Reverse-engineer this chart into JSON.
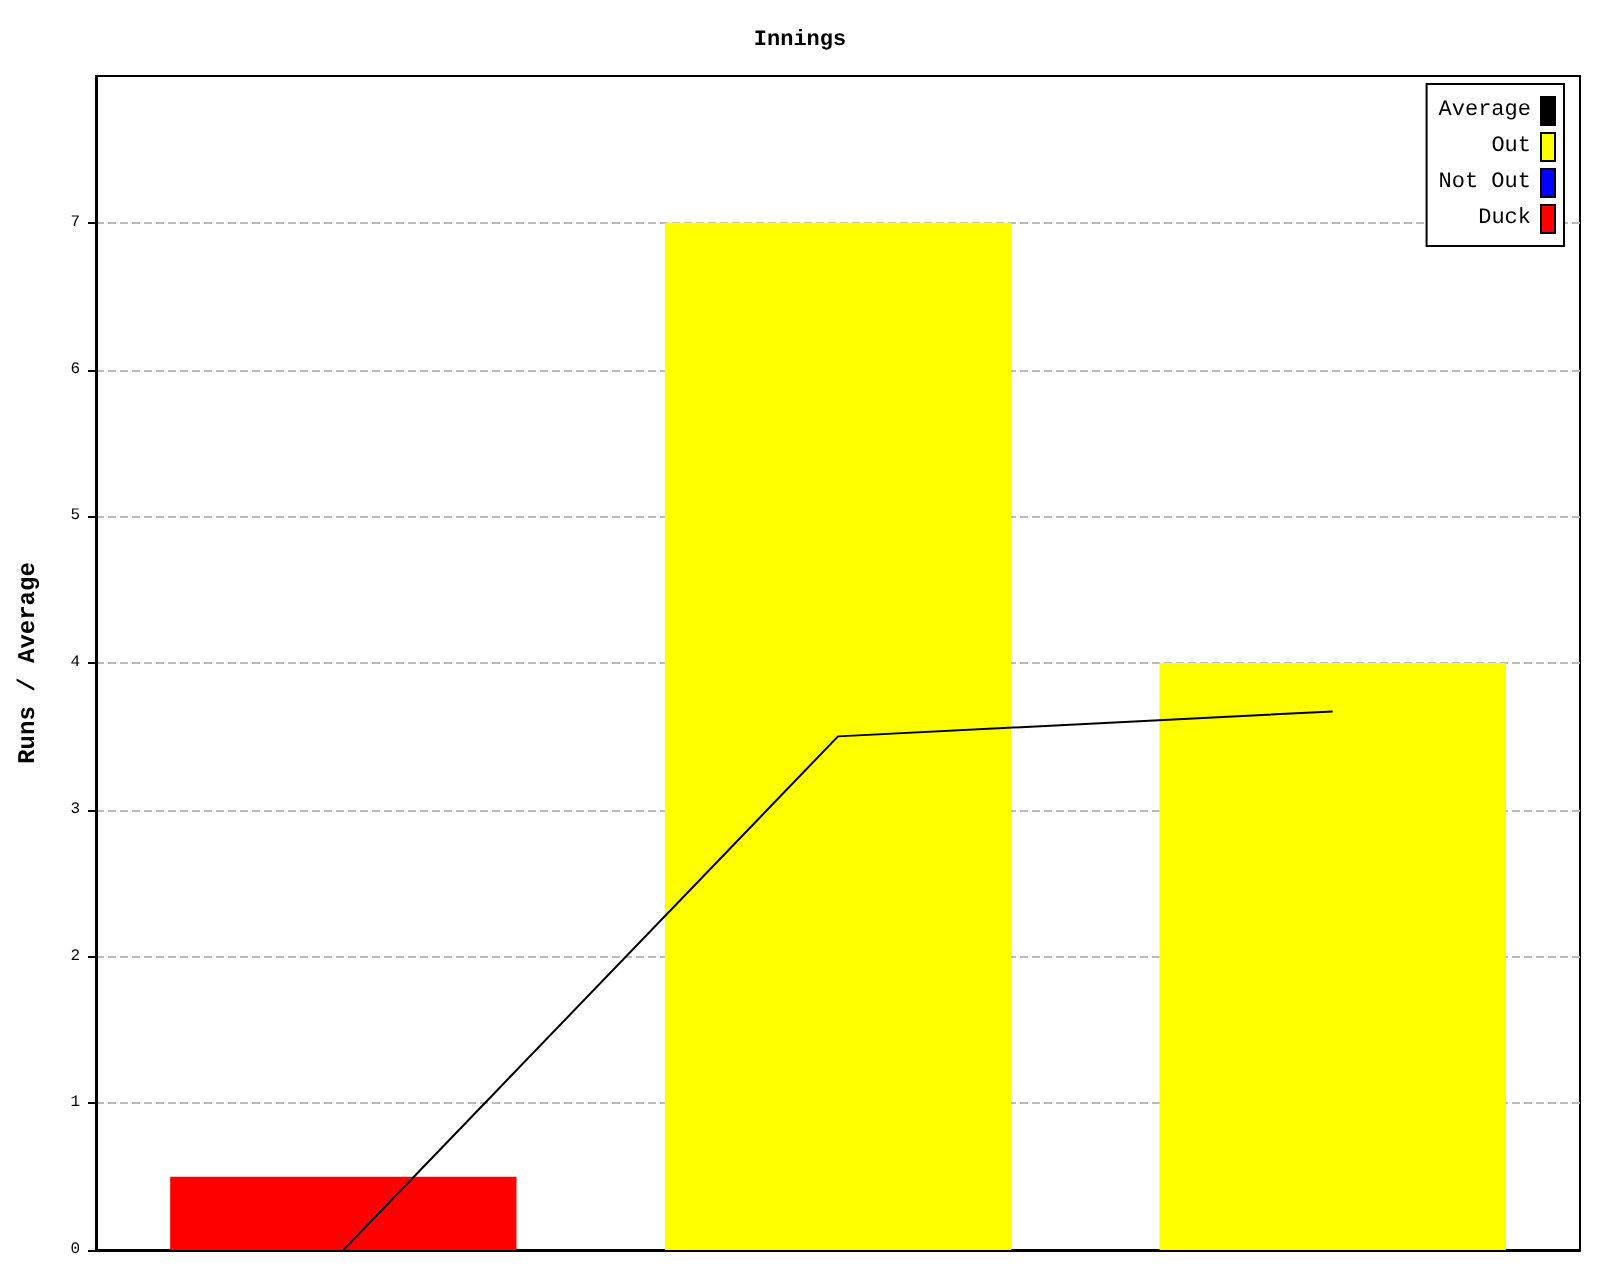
{
  "chart_data": {
    "type": "bar",
    "title": "Innings",
    "ylabel": "Runs / Average",
    "categories": [
      null,
      null,
      null
    ],
    "series": [
      {
        "name": "Average",
        "type": "line",
        "color": "#000000",
        "values": [
          0,
          3.5,
          3.67
        ]
      },
      {
        "name": "Out",
        "color": "#ffff00",
        "values": [
          null,
          7,
          4
        ]
      },
      {
        "name": "Not Out",
        "color": "#0000ff",
        "values": [
          null,
          null,
          null
        ]
      },
      {
        "name": "Duck",
        "color": "#ff0000",
        "values": [
          0.5,
          null,
          null
        ]
      }
    ],
    "stacked": true,
    "ylim": [
      0,
      8
    ],
    "yticks": [
      0,
      1,
      2,
      3,
      4,
      5,
      6,
      7
    ],
    "grid": "y",
    "legend": "top right",
    "marker": "none",
    "line_style": "solid"
  }
}
